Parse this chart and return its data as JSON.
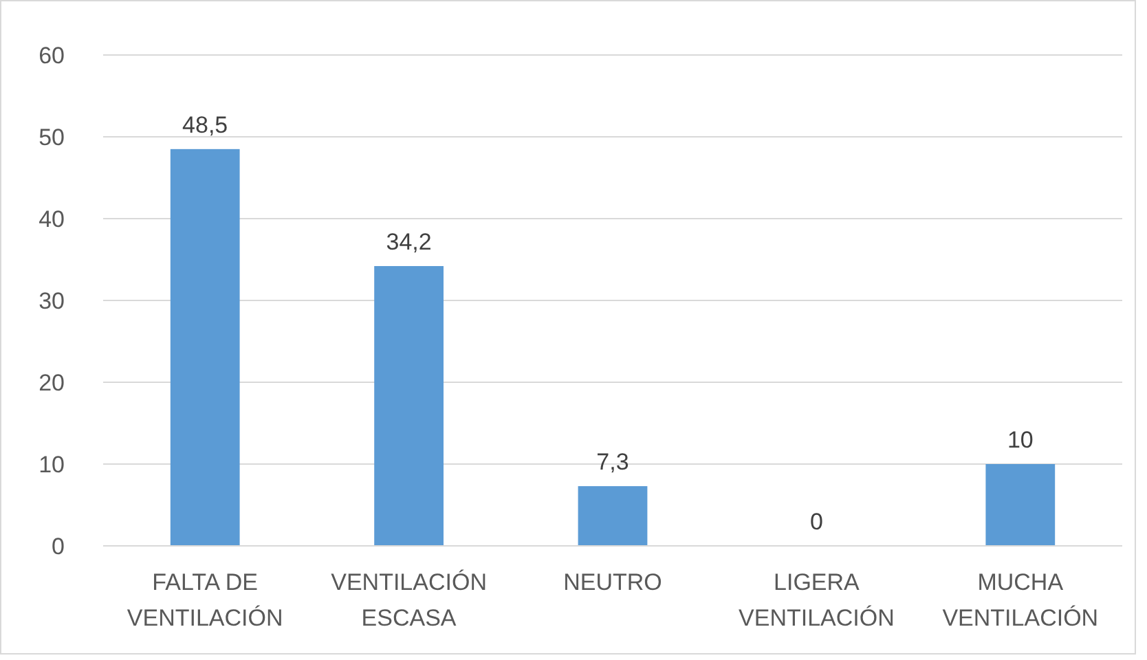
{
  "chart_data": {
    "type": "bar",
    "categories": [
      "FALTA DE VENTILACIÓN",
      "VENTILACIÓN ESCASA",
      "NEUTRO",
      "LIGERA VENTILACIÓN",
      "MUCHA VENTILACIÓN"
    ],
    "values": [
      48.5,
      34.2,
      7.3,
      0,
      10
    ],
    "value_labels": [
      "48,5",
      "34,2",
      "7,3",
      "0",
      "10"
    ],
    "color": "#5b9bd5",
    "ylim": [
      0,
      60
    ],
    "yticks": [
      0,
      10,
      20,
      30,
      40,
      50,
      60
    ],
    "grid": "y"
  }
}
